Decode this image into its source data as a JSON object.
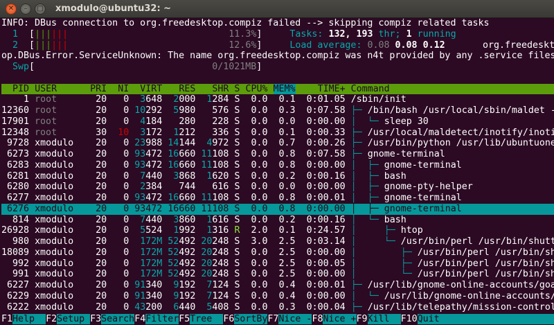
{
  "window": {
    "title": "xmodulo@ubuntu32: ~"
  },
  "messages": {
    "info": "INFO: DBus connection to org.freedesktop.compiz failed --> skipping compiz related tasks",
    "error": "op.DBus.Error.ServiceUnknown: The name org.freedesktop.compiz was n4t provided by any .service files",
    "overlay": "org.freedeskt"
  },
  "meters": {
    "cpu": [
      {
        "label": "1",
        "bar_low": 3,
        "bar_kernel": 3,
        "percent": "11.3%"
      },
      {
        "label": "2",
        "bar_low": 3,
        "bar_kernel": 3,
        "percent": "12.6%"
      }
    ],
    "swap": {
      "label": "Swp",
      "value": "0/1021MB"
    },
    "tasks": {
      "label": "Tasks:",
      "count": "132,",
      "threads": "193",
      "thr_label": "thr;",
      "running": "1",
      "running_label": "running"
    },
    "load": {
      "label": "Load average:",
      "v1": "0.08",
      "v5": "0.08",
      "v15": "0.12"
    }
  },
  "columns": [
    {
      "label": "PID",
      "w": 5,
      "align": "r"
    },
    {
      "label": "USER",
      "w": 9,
      "align": "l"
    },
    {
      "label": "PRI",
      "w": 3,
      "align": "r"
    },
    {
      "label": "NI",
      "w": 3,
      "align": "r"
    },
    {
      "label": "VIRT",
      "w": 5,
      "align": "r"
    },
    {
      "label": "RES",
      "w": 5,
      "align": "r"
    },
    {
      "label": "SHR",
      "w": 5,
      "align": "r"
    },
    {
      "label": "S",
      "w": 1,
      "align": "l"
    },
    {
      "label": "CPU%",
      "w": 4,
      "align": "r"
    },
    {
      "label": "MEM%",
      "w": 4,
      "align": "r",
      "sorted": true
    },
    {
      "label": "TIME+",
      "w": 8,
      "align": "r"
    },
    {
      "label": "Command",
      "w": 0,
      "align": "l"
    }
  ],
  "rows": [
    {
      "pid": "1",
      "user": "root",
      "pri": "20",
      "ni": "0",
      "virt": "3648",
      "res": "2000",
      "shr": "1284",
      "s": "S",
      "cpu": "0.0",
      "mem": "0.1",
      "time": "0:01.05",
      "tree": "",
      "cmd": "/sbin/init"
    },
    {
      "pid": "12360",
      "user": "root",
      "pri": "20",
      "ni": "0",
      "virt": "10292",
      "res": "5980",
      "shr": "576",
      "s": "S",
      "cpu": "0.0",
      "mem": "0.3",
      "time": "0:07.58",
      "tree": "├─ ",
      "cmd": "/bin/bash /usr/local/sbin/maldet -m"
    },
    {
      "pid": "17901",
      "user": "root",
      "pri": "20",
      "ni": "0",
      "virt": "4184",
      "res": "280",
      "shr": "228",
      "s": "S",
      "cpu": "0.0",
      "mem": "0.0",
      "time": "0:00.00",
      "tree": "│  └─ ",
      "cmd": "sleep 30"
    },
    {
      "pid": "12348",
      "user": "root",
      "pri": "30",
      "ni": "10",
      "virt": "3172",
      "res": "1212",
      "shr": "336",
      "s": "S",
      "cpu": "0.0",
      "mem": "0.1",
      "time": "0:00.33",
      "tree": "├─ ",
      "cmd": "/usr/local/maldetect/inotify/inotif"
    },
    {
      "pid": "9728",
      "user": "xmodulo",
      "pri": "20",
      "ni": "0",
      "virt": "23988",
      "res": "14144",
      "shr": "4972",
      "s": "S",
      "cpu": "0.0",
      "mem": "0.7",
      "time": "0:00.26",
      "tree": "├─ ",
      "cmd": "/usr/bin/python /usr/lib/ubuntuone-"
    },
    {
      "pid": "6273",
      "user": "xmodulo",
      "pri": "20",
      "ni": "0",
      "virt": "93472",
      "res": "16660",
      "shr": "11108",
      "s": "S",
      "cpu": "0.0",
      "mem": "0.8",
      "time": "0:07.58",
      "tree": "├─ ",
      "cmd": "gnome-terminal"
    },
    {
      "pid": "6283",
      "user": "xmodulo",
      "pri": "20",
      "ni": "0",
      "virt": "93472",
      "res": "16660",
      "shr": "11108",
      "s": "S",
      "cpu": "0.0",
      "mem": "0.8",
      "time": "0:00.00",
      "tree": "│  ├─ ",
      "cmd": "gnome-terminal"
    },
    {
      "pid": "6281",
      "user": "xmodulo",
      "pri": "20",
      "ni": "0",
      "virt": "7440",
      "res": "3868",
      "shr": "1620",
      "s": "S",
      "cpu": "0.0",
      "mem": "0.2",
      "time": "0:00.16",
      "tree": "│  ├─ ",
      "cmd": "bash"
    },
    {
      "pid": "6280",
      "user": "xmodulo",
      "pri": "20",
      "ni": "0",
      "virt": "2384",
      "res": "744",
      "shr": "616",
      "s": "S",
      "cpu": "0.0",
      "mem": "0.0",
      "time": "0:00.00",
      "tree": "│  ├─ ",
      "cmd": "gnome-pty-helper"
    },
    {
      "pid": "6277",
      "user": "xmodulo",
      "pri": "20",
      "ni": "0",
      "virt": "93472",
      "res": "16660",
      "shr": "11108",
      "s": "S",
      "cpu": "0.0",
      "mem": "0.8",
      "time": "0:00.01",
      "tree": "│  ├─ ",
      "cmd": "gnome-terminal"
    },
    {
      "pid": "6276",
      "user": "xmodulo",
      "pri": "20",
      "ni": "0",
      "virt": "93472",
      "res": "16660",
      "shr": "11108",
      "s": "S",
      "cpu": "0.0",
      "mem": "0.8",
      "time": "0:00.00",
      "tree": "│  ├─ ",
      "cmd": "gnome-terminal",
      "selected": true
    },
    {
      "pid": "814",
      "user": "xmodulo",
      "pri": "20",
      "ni": "0",
      "virt": "7440",
      "res": "3860",
      "shr": "1616",
      "s": "S",
      "cpu": "0.0",
      "mem": "0.2",
      "time": "0:00.16",
      "tree": "│  └─ ",
      "cmd": "bash"
    },
    {
      "pid": "26928",
      "user": "xmodulo",
      "pri": "20",
      "ni": "0",
      "virt": "5524",
      "res": "1992",
      "shr": "1316",
      "s": "R",
      "cpu": "2.0",
      "mem": "0.1",
      "time": "0:24.57",
      "tree": "│     ├─ ",
      "cmd": "htop"
    },
    {
      "pid": "980",
      "user": "xmodulo",
      "pri": "20",
      "ni": "0",
      "virt": "172M",
      "res": "52492",
      "shr": "20248",
      "s": "S",
      "cpu": "3.0",
      "mem": "2.5",
      "time": "0:03.14",
      "tree": "│     └─ ",
      "cmd": "/usr/bin/perl /usr/bin/shutte"
    },
    {
      "pid": "18089",
      "user": "xmodulo",
      "pri": "20",
      "ni": "0",
      "virt": "172M",
      "res": "52492",
      "shr": "20248",
      "s": "S",
      "cpu": "0.0",
      "mem": "2.5",
      "time": "0:00.00",
      "tree": "│        ├─ ",
      "cmd": "/usr/bin/perl /usr/bin/shu"
    },
    {
      "pid": "992",
      "user": "xmodulo",
      "pri": "20",
      "ni": "0",
      "virt": "172M",
      "res": "52492",
      "shr": "20248",
      "s": "S",
      "cpu": "0.0",
      "mem": "2.5",
      "time": "0:00.05",
      "tree": "│        ├─ ",
      "cmd": "/usr/bin/perl /usr/bin/shu"
    },
    {
      "pid": "991",
      "user": "xmodulo",
      "pri": "20",
      "ni": "0",
      "virt": "172M",
      "res": "52492",
      "shr": "20248",
      "s": "S",
      "cpu": "0.0",
      "mem": "2.5",
      "time": "0:00.00",
      "tree": "│        └─ ",
      "cmd": "/usr/bin/perl /usr/bin/shu"
    },
    {
      "pid": "6227",
      "user": "xmodulo",
      "pri": "20",
      "ni": "0",
      "virt": "91340",
      "res": "9192",
      "shr": "7124",
      "s": "S",
      "cpu": "0.0",
      "mem": "0.4",
      "time": "0:00.01",
      "tree": "├─ ",
      "cmd": "/usr/lib/gnome-online-accounts/goa-"
    },
    {
      "pid": "6229",
      "user": "xmodulo",
      "pri": "20",
      "ni": "0",
      "virt": "91340",
      "res": "9192",
      "shr": "7124",
      "s": "S",
      "cpu": "0.0",
      "mem": "0.4",
      "time": "0:00.00",
      "tree": "│  └─ ",
      "cmd": "/usr/lib/gnome-online-accounts/g"
    },
    {
      "pid": "6222",
      "user": "xmodulo",
      "pri": "20",
      "ni": "0",
      "virt": "43200",
      "res": "6440",
      "shr": "5408",
      "s": "S",
      "cpu": "0.0",
      "mem": "0.3",
      "time": "0:00.04",
      "tree": "├─ ",
      "cmd": "/usr/lib/telepathy/mission-control-"
    }
  ],
  "function_keys": [
    {
      "key": "F1",
      "label": "Help"
    },
    {
      "key": "F2",
      "label": "Setup"
    },
    {
      "key": "F3",
      "label": "Search"
    },
    {
      "key": "F4",
      "label": "Filter"
    },
    {
      "key": "F5",
      "label": "Tree"
    },
    {
      "key": "F6",
      "label": "SortBy"
    },
    {
      "key": "F7",
      "label": "Nice -"
    },
    {
      "key": "F8",
      "label": "Nice +"
    },
    {
      "key": "F9",
      "label": "Kill"
    },
    {
      "key": "F10",
      "label": "Quit"
    }
  ],
  "colors": {
    "background": "#2c0a23",
    "header": "#5c9d0c",
    "accent": "#06989a"
  }
}
